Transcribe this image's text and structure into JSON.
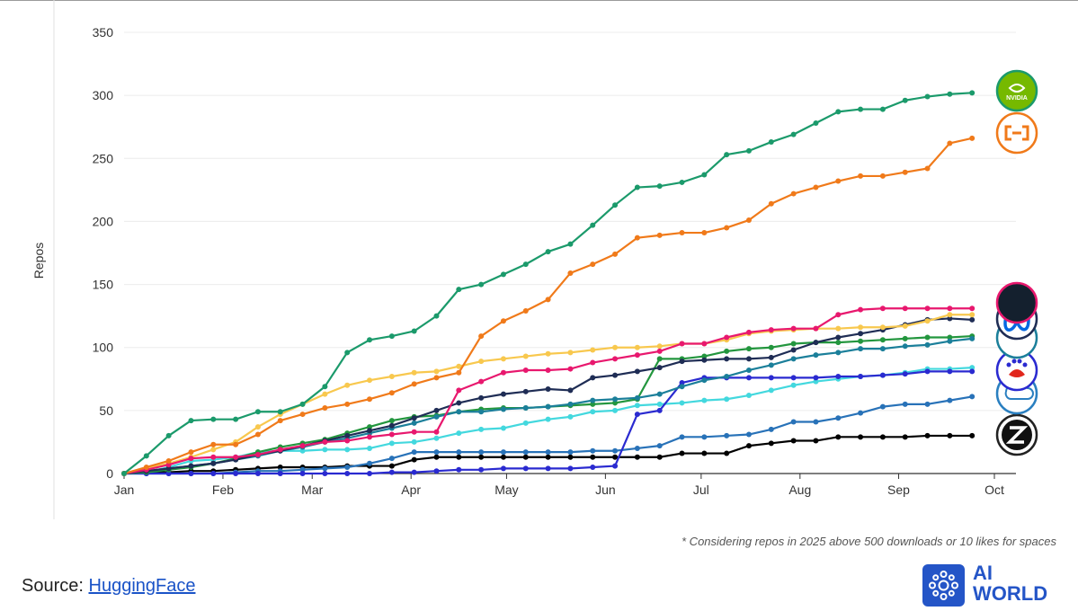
{
  "chart_data": {
    "type": "line",
    "ylabel": "Repos",
    "ylim": [
      0,
      350
    ],
    "yticks": [
      0,
      50,
      100,
      150,
      200,
      250,
      300,
      350
    ],
    "xlim": [
      0,
      39
    ],
    "xticks": [
      {
        "label": "Jan",
        "x": 0
      },
      {
        "label": "Feb",
        "x": 4.43
      },
      {
        "label": "Mar",
        "x": 8.43
      },
      {
        "label": "Apr",
        "x": 12.86
      },
      {
        "label": "May",
        "x": 17.14
      },
      {
        "label": "Jun",
        "x": 21.57
      },
      {
        "label": "Jul",
        "x": 25.86
      },
      {
        "label": "Aug",
        "x": 30.29
      },
      {
        "label": "Sep",
        "x": 34.71
      },
      {
        "label": "Oct",
        "x": 39
      }
    ],
    "grid": true,
    "series": [
      {
        "icon": "nvidia-logo",
        "color": "#1b9a6b",
        "values": [
          0,
          14,
          30,
          42,
          43,
          43,
          49,
          49,
          55,
          69,
          96,
          106,
          109,
          113,
          125,
          146,
          150,
          158,
          166,
          176,
          182,
          197,
          213,
          227,
          228,
          231,
          237,
          253,
          256,
          263,
          269,
          278,
          287,
          289,
          289,
          296,
          299,
          301,
          302
        ]
      },
      {
        "icon": "alibaba-cloud-logo",
        "color": "#f07a1a",
        "values": [
          0,
          5,
          10,
          17,
          23,
          23,
          31,
          42,
          47,
          52,
          55,
          59,
          64,
          71,
          76,
          80,
          109,
          121,
          129,
          138,
          159,
          166,
          174,
          187,
          189,
          191,
          191,
          195,
          201,
          214,
          222,
          227,
          232,
          236,
          236,
          239,
          242,
          262,
          266
        ]
      },
      {
        "icon": "openai-logo",
        "color": "#e8186e",
        "values": [
          0,
          3,
          7,
          12,
          13,
          13,
          15,
          19,
          22,
          25,
          26,
          29,
          31,
          33,
          33,
          66,
          73,
          80,
          82,
          82,
          83,
          88,
          91,
          94,
          97,
          103,
          103,
          108,
          112,
          114,
          115,
          115,
          126,
          130,
          131,
          131,
          131,
          131,
          131
        ]
      },
      {
        "icon": "meta-logo",
        "color": "#f8c84e",
        "values": [
          0,
          4,
          8,
          13,
          19,
          25,
          37,
          47,
          55,
          63,
          70,
          74,
          77,
          80,
          81,
          85,
          89,
          91,
          93,
          95,
          96,
          98,
          100,
          100,
          101,
          103,
          103,
          106,
          111,
          113,
          114,
          115,
          115,
          116,
          116,
          117,
          121,
          126,
          126
        ]
      },
      {
        "icon": "google-logo",
        "color": "#1f2d55",
        "values": [
          0,
          2,
          4,
          6,
          8,
          11,
          15,
          18,
          22,
          26,
          30,
          34,
          38,
          44,
          50,
          56,
          60,
          63,
          65,
          67,
          66,
          76,
          78,
          81,
          84,
          89,
          90,
          91,
          91,
          92,
          98,
          104,
          108,
          111,
          114,
          118,
          122,
          123,
          122
        ]
      },
      {
        "icon": "microsoft-logo",
        "color": "#1b7f9a",
        "values": [
          0,
          2,
          4,
          6,
          8,
          11,
          14,
          18,
          21,
          25,
          28,
          32,
          36,
          40,
          45,
          49,
          49,
          51,
          52,
          53,
          55,
          58,
          59,
          60,
          63,
          69,
          74,
          77,
          82,
          86,
          91,
          94,
          96,
          99,
          99,
          101,
          102,
          105,
          107
        ]
      },
      {
        "icon": "mistral-logo",
        "color": "#23963e",
        "values": [
          0,
          1,
          3,
          5,
          8,
          12,
          17,
          21,
          24,
          27,
          32,
          37,
          42,
          45,
          46,
          49,
          51,
          52,
          52,
          53,
          54,
          55,
          56,
          59,
          91,
          91,
          93,
          97,
          99,
          100,
          103,
          104,
          104,
          105,
          106,
          107,
          108,
          108,
          109
        ]
      },
      {
        "icon": "baidu-logo",
        "color": "#2a2ad0",
        "values": [
          0,
          0,
          0,
          0,
          0,
          0,
          0,
          0,
          0,
          0,
          0,
          0,
          1,
          1,
          2,
          3,
          3,
          4,
          4,
          4,
          4,
          5,
          6,
          47,
          50,
          72,
          76,
          76,
          76,
          76,
          76,
          76,
          77,
          77,
          78,
          79,
          81,
          81,
          81
        ]
      },
      {
        "icon": "deepseek-logo",
        "color": "#43d8de",
        "values": [
          0,
          1,
          5,
          10,
          11,
          13,
          17,
          18,
          18,
          19,
          19,
          20,
          24,
          25,
          28,
          32,
          35,
          36,
          40,
          43,
          45,
          49,
          50,
          54,
          55,
          56,
          58,
          59,
          62,
          66,
          70,
          73,
          75,
          77,
          78,
          80,
          83,
          83,
          84
        ]
      },
      {
        "icon": "tencent-logo",
        "color": "#2872b8",
        "values": [
          0,
          0,
          0,
          0,
          0,
          1,
          2,
          2,
          3,
          4,
          5,
          8,
          12,
          17,
          17,
          17,
          17,
          17,
          17,
          17,
          17,
          18,
          18,
          20,
          22,
          29,
          29,
          30,
          31,
          35,
          41,
          41,
          44,
          48,
          53,
          55,
          55,
          58,
          61
        ]
      },
      {
        "icon": "zhipu-logo",
        "color": "#000000",
        "values": [
          0,
          1,
          1,
          2,
          2,
          3,
          4,
          5,
          5,
          5,
          6,
          6,
          6,
          11,
          13,
          13,
          13,
          13,
          13,
          13,
          13,
          13,
          13,
          13,
          13,
          16,
          16,
          16,
          22,
          24,
          26,
          26,
          29,
          29,
          29,
          29,
          30,
          30,
          30
        ]
      }
    ]
  },
  "footnote": "* Considering repos in 2025 above 500 downloads or 10 likes for spaces",
  "source_label": "Source:",
  "source_link": "HuggingFace",
  "brand": {
    "line1": "AI",
    "line2": "WORLD",
    "color": "#2455c7"
  }
}
